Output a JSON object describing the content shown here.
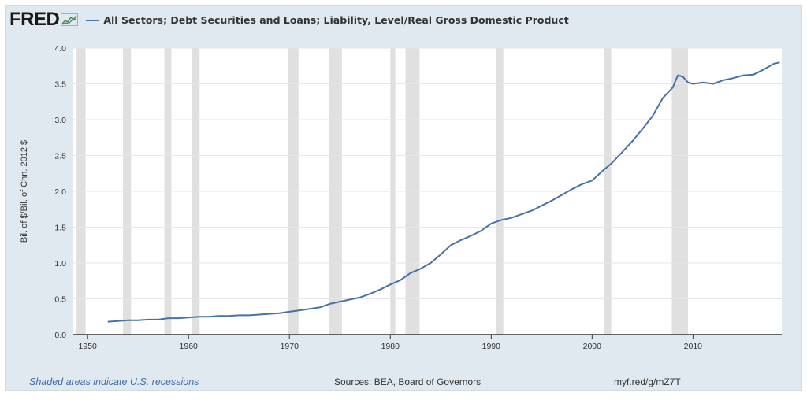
{
  "header": {
    "logo_text": "FRED",
    "legend_label": "All Sectors; Debt Securities and Loans; Liability, Level/Real Gross Domestic Product"
  },
  "footer": {
    "note": "Shaded areas indicate U.S. recessions",
    "sources": "Sources: BEA, Board of Governors",
    "link": "myf.red/g/mZ7T"
  },
  "colors": {
    "series": "#4572a7",
    "recession": "#e0e0e0",
    "frame": "#e1e9f0"
  },
  "chart_data": {
    "type": "line",
    "title": "",
    "ylabel": "Bil. of $/Bil. of Chn. 2012 $",
    "xlabel": "",
    "xlim": [
      1948.5,
      2018.8
    ],
    "ylim": [
      0,
      4.0
    ],
    "x_ticks": [
      "1950",
      "1960",
      "1970",
      "1980",
      "1990",
      "2000",
      "2010"
    ],
    "y_ticks": [
      "0.0",
      "0.5",
      "1.0",
      "1.5",
      "2.0",
      "2.5",
      "3.0",
      "3.5",
      "4.0"
    ],
    "grid": true,
    "recessions": [
      [
        1948.9,
        1949.8
      ],
      [
        1953.5,
        1954.3
      ],
      [
        1957.6,
        1958.3
      ],
      [
        1960.3,
        1961.1
      ],
      [
        1969.9,
        1970.9
      ],
      [
        1973.9,
        1975.2
      ],
      [
        1980.0,
        1980.5
      ],
      [
        1981.5,
        1982.9
      ],
      [
        1990.5,
        1991.2
      ],
      [
        2001.2,
        2001.9
      ],
      [
        2007.9,
        2009.5
      ]
    ],
    "series": [
      {
        "name": "All Sectors; Debt Securities and Loans; Liability, Level/Real Gross Domestic Product",
        "x": [
          1952,
          1953,
          1954,
          1955,
          1956,
          1957,
          1958,
          1959,
          1960,
          1961,
          1962,
          1963,
          1964,
          1965,
          1966,
          1967,
          1968,
          1969,
          1970,
          1971,
          1972,
          1973,
          1974,
          1975,
          1976,
          1977,
          1978,
          1979,
          1980,
          1981,
          1982,
          1983,
          1984,
          1985,
          1986,
          1987,
          1988,
          1989,
          1990,
          1991,
          1992,
          1993,
          1994,
          1995,
          1996,
          1997,
          1998,
          1999,
          2000,
          2001,
          2002,
          2003,
          2004,
          2005,
          2006,
          2007,
          2008,
          2008.5,
          2009,
          2009.5,
          2010,
          2011,
          2012,
          2013,
          2014,
          2015,
          2016,
          2017,
          2018,
          2018.6
        ],
        "values": [
          0.18,
          0.19,
          0.2,
          0.2,
          0.21,
          0.21,
          0.23,
          0.23,
          0.24,
          0.25,
          0.25,
          0.26,
          0.26,
          0.27,
          0.27,
          0.28,
          0.29,
          0.3,
          0.32,
          0.34,
          0.36,
          0.38,
          0.43,
          0.46,
          0.49,
          0.52,
          0.57,
          0.63,
          0.7,
          0.76,
          0.86,
          0.92,
          1.0,
          1.12,
          1.25,
          1.32,
          1.38,
          1.45,
          1.55,
          1.6,
          1.63,
          1.68,
          1.73,
          1.8,
          1.87,
          1.95,
          2.03,
          2.1,
          2.15,
          2.28,
          2.4,
          2.55,
          2.7,
          2.87,
          3.05,
          3.3,
          3.45,
          3.62,
          3.6,
          3.52,
          3.5,
          3.52,
          3.5,
          3.55,
          3.58,
          3.62,
          3.63,
          3.7,
          3.78,
          3.8
        ]
      }
    ]
  }
}
